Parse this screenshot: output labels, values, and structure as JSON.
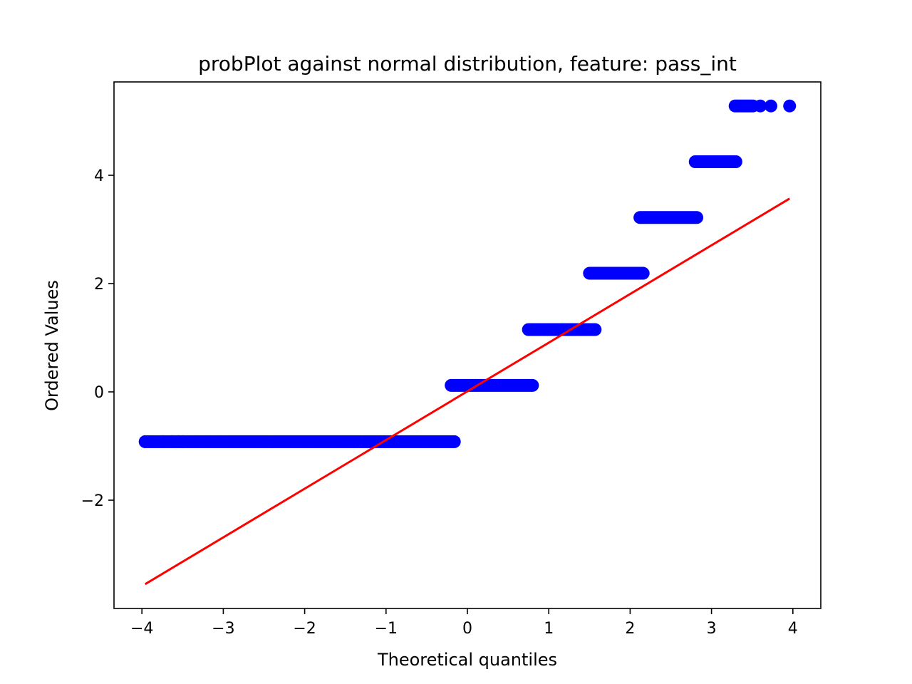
{
  "chart_data": {
    "type": "scatter",
    "title": "probPlot against normal distribution, feature: pass_int",
    "xlabel": "Theoretical quantiles",
    "ylabel": "Ordered Values",
    "xlim": [
      -4.35,
      3.35
    ],
    "ylim": [
      -4.0,
      5.75
    ],
    "xticks": [
      -4,
      -3,
      -2,
      -1,
      0,
      1,
      2,
      3,
      4
    ],
    "yticks": [
      -2,
      0,
      2,
      4
    ],
    "xtick_labels": [
      "−4",
      "−3",
      "−2",
      "−1",
      "0",
      "1",
      "2",
      "3",
      "4"
    ],
    "ytick_labels": [
      "−2",
      "0",
      "2",
      "4"
    ],
    "grid": false,
    "legend": "none",
    "series": [
      {
        "kind": "points",
        "color": "#0000ff",
        "segments": [
          {
            "y": -0.92,
            "x_start": -3.96,
            "x_end": -0.16,
            "isolated_x": [
              -3.96,
              -3.74,
              -3.63,
              -3.55,
              -3.5
            ]
          },
          {
            "y": 0.12,
            "x_start": -0.2,
            "x_end": 0.8
          },
          {
            "y": 1.15,
            "x_start": 0.75,
            "x_end": 1.57
          },
          {
            "y": 2.19,
            "x_start": 1.5,
            "x_end": 2.17
          },
          {
            "y": 3.22,
            "x_start": 2.12,
            "x_end": 2.83
          },
          {
            "y": 4.25,
            "x_start": 2.8,
            "x_end": 3.3
          },
          {
            "y": 5.28,
            "x_start": 3.29,
            "x_end": 3.52,
            "isolated_x": [
              3.6,
              3.73,
              3.96
            ]
          }
        ]
      },
      {
        "kind": "line",
        "color": "#ff0000",
        "x": [
          -3.96,
          3.96
        ],
        "y": [
          -3.55,
          3.57
        ]
      }
    ]
  }
}
